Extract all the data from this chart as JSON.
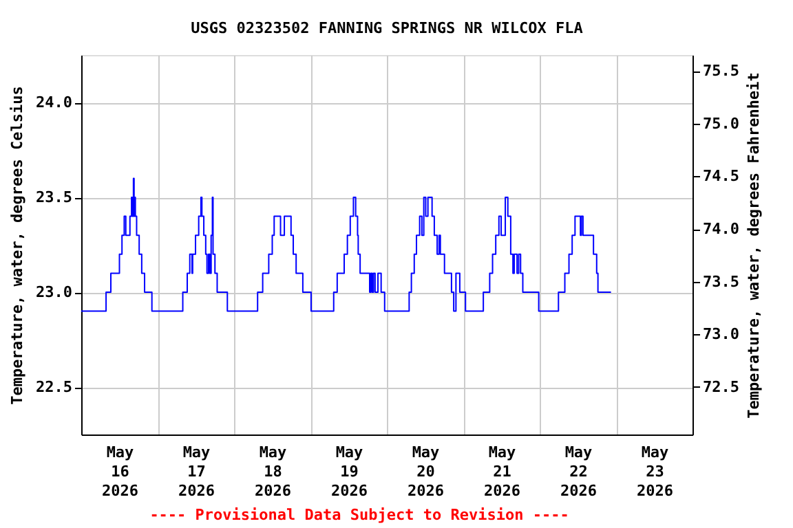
{
  "chart_data": {
    "type": "step",
    "title": "USGS 02323502 FANNING SPRINGS NR WILCOX FLA",
    "ylabel": "Temperature, water, degrees Celsius",
    "y2label": "Temperature, water, degrees Fahrenheit",
    "annotations": [
      "---- Provisional Data Subject to Revision ----"
    ],
    "xlim": [
      "2026-05-16T00:00",
      "2026-05-24T00:00"
    ],
    "xticks": [
      {
        "value": "2026-05-16T00:00",
        "label": null
      },
      {
        "value": "2026-05-16T12:00",
        "label": "May 16 2026"
      },
      {
        "value": "2026-05-17T00:00",
        "label": null
      },
      {
        "value": "2026-05-17T12:00",
        "label": "May 17 2026"
      },
      {
        "value": "2026-05-18T00:00",
        "label": null
      },
      {
        "value": "2026-05-18T12:00",
        "label": "May 18 2026"
      },
      {
        "value": "2026-05-19T00:00",
        "label": null
      },
      {
        "value": "2026-05-19T12:00",
        "label": "May 19 2026"
      },
      {
        "value": "2026-05-20T00:00",
        "label": null
      },
      {
        "value": "2026-05-20T12:00",
        "label": "May 20 2026"
      },
      {
        "value": "2026-05-21T00:00",
        "label": null
      },
      {
        "value": "2026-05-21T12:00",
        "label": "May 21 2026"
      },
      {
        "value": "2026-05-22T00:00",
        "label": null
      },
      {
        "value": "2026-05-22T12:00",
        "label": "May 22 2026"
      },
      {
        "value": "2026-05-23T00:00",
        "label": null
      },
      {
        "value": "2026-05-23T12:00",
        "label": "May 23 2026"
      },
      {
        "value": "2026-05-24T00:00",
        "label": null
      }
    ],
    "ylim": [
      22.25,
      24.25
    ],
    "yticks": [
      22.5,
      {
        "value": 23,
        "label": "23.0"
      },
      23.5,
      {
        "value": 24,
        "label": "24.0"
      }
    ],
    "y2lim": [
      72.05,
      75.65
    ],
    "y2ticks": [
      72.5,
      {
        "value": 73,
        "label": "73.0"
      },
      73.5,
      {
        "value": 74,
        "label": "74.0"
      },
      74.5,
      {
        "value": 75,
        "label": "75.0"
      },
      75.5
    ],
    "grid": true,
    "line_style": "solid",
    "series": [
      {
        "color": "#0000ff",
        "x": [
          "2026-05-16T00:00",
          "2026-05-16T07:48",
          "2026-05-16T09:18",
          "2026-05-16T12:00",
          "2026-05-16T12:48",
          "2026-05-16T13:30",
          "2026-05-16T14:00",
          "2026-05-16T15:18",
          "2026-05-16T15:48",
          "2026-05-16T16:00",
          "2026-05-16T16:24",
          "2026-05-16T16:36",
          "2026-05-16T16:48",
          "2026-05-16T17:00",
          "2026-05-16T17:24",
          "2026-05-16T18:12",
          "2026-05-16T19:00",
          "2026-05-16T19:54",
          "2026-05-16T22:12",
          "2026-05-17T07:54",
          "2026-05-17T09:18",
          "2026-05-17T10:06",
          "2026-05-17T10:48",
          "2026-05-17T11:00",
          "2026-05-17T11:54",
          "2026-05-17T12:54",
          "2026-05-17T13:36",
          "2026-05-17T13:54",
          "2026-05-17T14:30",
          "2026-05-17T15:06",
          "2026-05-17T15:30",
          "2026-05-17T16:00",
          "2026-05-17T16:24",
          "2026-05-17T16:48",
          "2026-05-17T17:12",
          "2026-05-17T17:24",
          "2026-05-17T18:00",
          "2026-05-17T18:42",
          "2026-05-17T21:54",
          "2026-05-18T07:24",
          "2026-05-18T09:00",
          "2026-05-18T10:54",
          "2026-05-18T12:00",
          "2026-05-18T12:36",
          "2026-05-18T14:36",
          "2026-05-18T15:48",
          "2026-05-18T17:54",
          "2026-05-18T18:36",
          "2026-05-18T19:30",
          "2026-05-18T21:36",
          "2026-05-19T00:12",
          "2026-05-19T07:18",
          "2026-05-19T08:24",
          "2026-05-19T10:36",
          "2026-05-19T11:36",
          "2026-05-19T12:30",
          "2026-05-19T13:30",
          "2026-05-19T14:12",
          "2026-05-19T14:48",
          "2026-05-19T15:00",
          "2026-05-19T15:36",
          "2026-05-19T18:36",
          "2026-05-19T19:00",
          "2026-05-19T19:24",
          "2026-05-19T19:48",
          "2026-05-19T20:18",
          "2026-05-19T21:12",
          "2026-05-19T22:12",
          "2026-05-19T23:18",
          "2026-05-20T07:00",
          "2026-05-20T07:42",
          "2026-05-20T08:36",
          "2026-05-20T09:18",
          "2026-05-20T10:18",
          "2026-05-20T11:00",
          "2026-05-20T11:36",
          "2026-05-20T12:12",
          "2026-05-20T12:54",
          "2026-05-20T14:12",
          "2026-05-20T14:54",
          "2026-05-20T15:48",
          "2026-05-20T16:24",
          "2026-05-20T16:48",
          "2026-05-20T18:06",
          "2026-05-20T20:18",
          "2026-05-20T21:00",
          "2026-05-20T21:42",
          "2026-05-20T22:54",
          "2026-05-21T00:42",
          "2026-05-21T06:18",
          "2026-05-21T08:18",
          "2026-05-21T09:12",
          "2026-05-21T10:12",
          "2026-05-21T11:12",
          "2026-05-21T11:54",
          "2026-05-21T13:12",
          "2026-05-21T14:00",
          "2026-05-21T14:54",
          "2026-05-21T15:36",
          "2026-05-21T16:00",
          "2026-05-21T16:54",
          "2026-05-21T17:24",
          "2026-05-21T18:00",
          "2026-05-21T18:42",
          "2026-05-21T23:42",
          "2026-05-22T05:54",
          "2026-05-22T07:54",
          "2026-05-22T09:12",
          "2026-05-22T10:12",
          "2026-05-22T11:06",
          "2026-05-22T12:48",
          "2026-05-22T13:06",
          "2026-05-22T13:36",
          "2026-05-22T16:54",
          "2026-05-22T17:54",
          "2026-05-22T18:18",
          "2026-05-22T22:24"
        ],
        "values": [
          22.9,
          23.0,
          23.1,
          23.2,
          23.3,
          23.4,
          23.3,
          23.4,
          23.5,
          23.4,
          23.6,
          23.4,
          23.5,
          23.4,
          23.3,
          23.2,
          23.1,
          23.0,
          22.9,
          23.0,
          23.1,
          23.2,
          23.1,
          23.2,
          23.3,
          23.4,
          23.5,
          23.4,
          23.3,
          23.2,
          23.1,
          23.2,
          23.1,
          23.3,
          23.5,
          23.2,
          23.1,
          23.0,
          22.9,
          23.0,
          23.1,
          23.2,
          23.3,
          23.4,
          23.3,
          23.4,
          23.3,
          23.2,
          23.1,
          23.0,
          22.9,
          23.0,
          23.1,
          23.2,
          23.3,
          23.4,
          23.5,
          23.4,
          23.3,
          23.2,
          23.1,
          23.0,
          23.1,
          23.0,
          23.1,
          23.0,
          23.1,
          23.0,
          22.9,
          23.0,
          23.1,
          23.2,
          23.3,
          23.4,
          23.3,
          23.5,
          23.4,
          23.5,
          23.4,
          23.3,
          23.2,
          23.3,
          23.2,
          23.1,
          23.0,
          22.9,
          23.1,
          23.0,
          22.9,
          23.0,
          23.1,
          23.2,
          23.3,
          23.4,
          23.3,
          23.5,
          23.4,
          23.2,
          23.1,
          23.2,
          23.1,
          23.2,
          23.1,
          23.0,
          22.9,
          23.0,
          23.1,
          23.2,
          23.3,
          23.4,
          23.3,
          23.4,
          23.3,
          23.2,
          23.1,
          23.0,
          23.0
        ]
      }
    ]
  }
}
